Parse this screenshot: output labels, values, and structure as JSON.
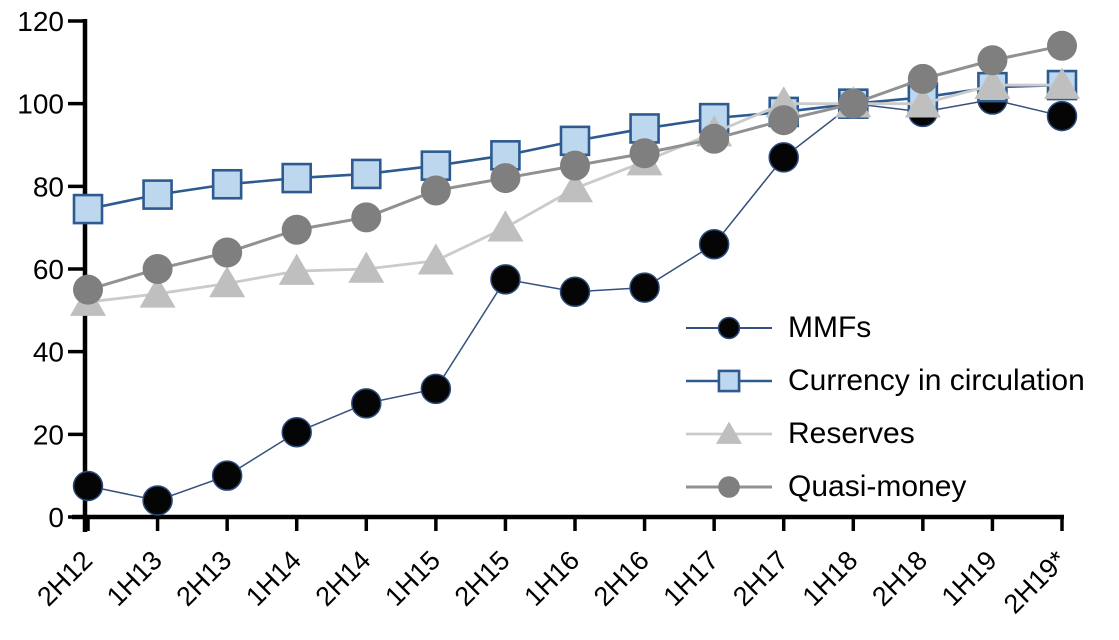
{
  "chart_data": {
    "type": "line",
    "title": "",
    "xlabel": "",
    "ylabel": "",
    "categories": [
      "2H12",
      "1H13",
      "2H13",
      "1H14",
      "2H14",
      "1H15",
      "2H15",
      "1H16",
      "2H16",
      "1H17",
      "2H17",
      "1H18",
      "2H18",
      "1H19",
      "2H19*"
    ],
    "yticks": [
      0,
      20,
      40,
      60,
      80,
      100,
      120
    ],
    "ylim": [
      0,
      120
    ],
    "grid": false,
    "legend_position": "inside-right",
    "axis_color": "#000000",
    "background_color": "#FFFFFF",
    "series": [
      {
        "name": "MMFs",
        "marker": "circle",
        "marker_fill": "#050505",
        "marker_stroke": "#2B4B7E",
        "marker_stroke_width": 1.5,
        "marker_size": 29,
        "line_color": "#35507E",
        "line_width": 1.5,
        "values": [
          7.5,
          4,
          10,
          20.5,
          27.5,
          31,
          57.5,
          54.5,
          55.5,
          66,
          87,
          100,
          98,
          101,
          97
        ]
      },
      {
        "name": "Currency in circulation",
        "marker": "square",
        "marker_fill": "#BDD7EE",
        "marker_stroke": "#2E5B8F",
        "marker_stroke_width": 2.6,
        "marker_size": 28,
        "line_color": "#2E5B8F",
        "line_width": 2.6,
        "values": [
          74.5,
          78,
          80.5,
          82,
          83,
          85,
          87.5,
          91,
          94,
          96.5,
          98,
          100,
          101.5,
          104,
          104.5
        ]
      },
      {
        "name": "Reserves",
        "marker": "triangle",
        "marker_fill": "#BFBFBF",
        "marker_stroke": "none",
        "marker_stroke_width": 0,
        "marker_size": 30,
        "line_color": "#CBCBCB",
        "line_width": 2.8,
        "values": [
          52,
          54,
          56.5,
          59.5,
          60,
          62,
          70,
          79.5,
          86,
          93,
          100,
          100,
          100,
          104.5,
          104.5
        ]
      },
      {
        "name": "Quasi-money",
        "marker": "circle",
        "marker_fill": "#7F7F7F",
        "marker_stroke": "none",
        "marker_stroke_width": 0,
        "marker_size": 30,
        "line_color": "#919191",
        "line_width": 3,
        "values": [
          55,
          60,
          64,
          69.5,
          72.5,
          79,
          82,
          85,
          88,
          91.5,
          96,
          100,
          106,
          110.5,
          114
        ]
      }
    ]
  }
}
